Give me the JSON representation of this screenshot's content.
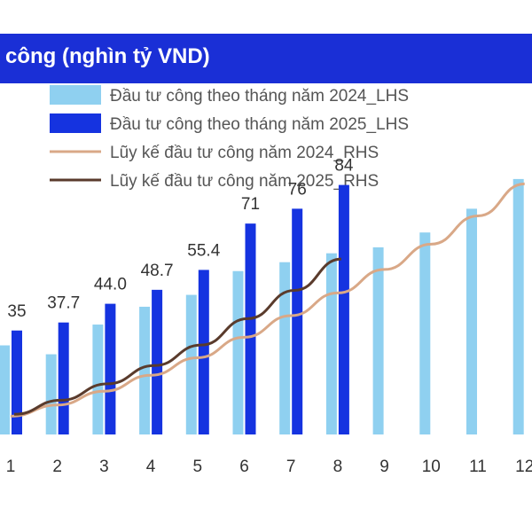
{
  "title": "công (nghìn tỷ VND)",
  "colors": {
    "title_bg": "#1a2fd6",
    "bar_2024": "#8fd0f0",
    "bar_2025": "#1533e0",
    "line_2024": "#d9a887",
    "line_2025": "#5a3b2c"
  },
  "chart_data": {
    "type": "bar",
    "title": "công (nghìn tỷ VND)",
    "categories": [
      "1",
      "2",
      "3",
      "4",
      "5",
      "6",
      "7",
      "8",
      "9",
      "10",
      "11",
      "12"
    ],
    "series": [
      {
        "name": "Đầu tư công theo tháng năm 2024_LHS",
        "type": "bar",
        "axis": "left",
        "values": [
          30,
          27,
          37,
          43,
          47,
          55,
          58,
          61,
          63,
          68,
          76,
          86
        ]
      },
      {
        "name": "Đầu tư công theo tháng năm 2025_LHS",
        "type": "bar",
        "axis": "left",
        "values": [
          35,
          37.7,
          44.0,
          48.7,
          55.4,
          71,
          76,
          84,
          null,
          null,
          null,
          null
        ],
        "data_labels": [
          "35",
          "37.7",
          "44.0",
          "48.7",
          "55.4",
          "71",
          "76",
          "84",
          "",
          "",
          "",
          ""
        ]
      },
      {
        "name": "Lũy kế đầu tư công năm 2024_RHS",
        "type": "line",
        "axis": "right",
        "values": [
          30,
          60,
          97,
          140,
          187,
          242,
          300,
          361,
          424,
          492,
          568,
          654
        ]
      },
      {
        "name": "Lũy kế đầu tư công năm 2025_RHS",
        "type": "line",
        "axis": "right",
        "values": [
          35,
          73,
          117,
          166,
          221,
          292,
          368,
          452,
          null,
          null,
          null,
          null
        ]
      }
    ],
    "legend_position": "top-left",
    "grid": false
  }
}
